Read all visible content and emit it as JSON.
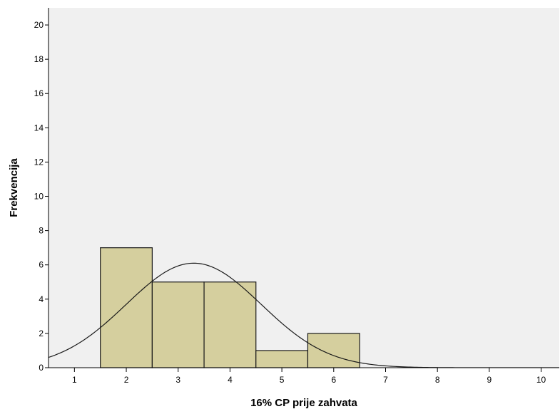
{
  "chart_data": {
    "type": "bar",
    "subtype": "histogram",
    "xlabel": "16% CP prije zahvata",
    "ylabel": "Frekvencija",
    "xlim": [
      0.5,
      10.35
    ],
    "ylim": [
      0,
      21
    ],
    "x_ticks": [
      1,
      2,
      3,
      4,
      5,
      6,
      7,
      8,
      9,
      10
    ],
    "y_ticks": [
      0,
      2,
      4,
      6,
      8,
      10,
      12,
      14,
      16,
      18,
      20
    ],
    "bin_width": 1,
    "bins": [
      {
        "center": 2,
        "count": 7
      },
      {
        "center": 3,
        "count": 5
      },
      {
        "center": 4,
        "count": 5
      },
      {
        "center": 5,
        "count": 1
      },
      {
        "center": 6,
        "count": 2
      }
    ],
    "normal_curve": {
      "mean": 3.3,
      "peak": 6.1,
      "sd": 1.3
    },
    "grid": false,
    "legend": "none",
    "colors": {
      "plot_background": "#f0f0f0",
      "bar_fill": "#d5cf9e",
      "bar_stroke": "#1a1a1a",
      "curve": "#1a1a1a"
    }
  }
}
